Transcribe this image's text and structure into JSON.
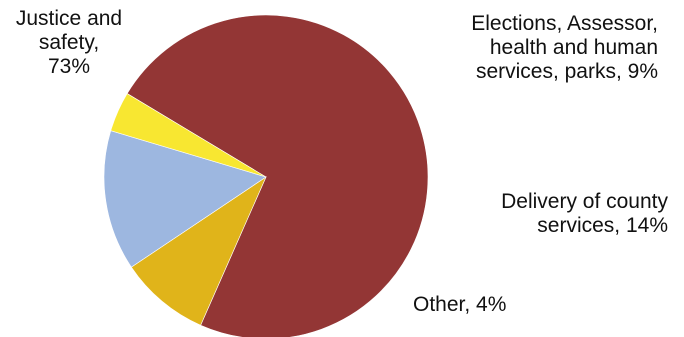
{
  "chart_data": {
    "type": "pie",
    "title": "",
    "slices": [
      {
        "label": "Justice and safety",
        "value": 73,
        "color": "#933635",
        "label_lines": [
          "Justice and",
          "safety,",
          "73%"
        ]
      },
      {
        "label": "Elections, Assessor, health and human services, parks",
        "value": 9,
        "color": "#E0B41A",
        "label_lines": [
          "Elections, Assessor,",
          "health and human",
          "services, parks, 9%"
        ]
      },
      {
        "label": "Delivery of county services",
        "value": 14,
        "color": "#9DB7E0",
        "label_lines": [
          "Delivery of county",
          "services, 14%"
        ]
      },
      {
        "label": "Other",
        "value": 4,
        "color": "#F8E731",
        "label_lines": [
          "Other, 4%"
        ]
      }
    ],
    "start_angle_deg": 301,
    "direction": "clockwise",
    "legend": "none"
  }
}
